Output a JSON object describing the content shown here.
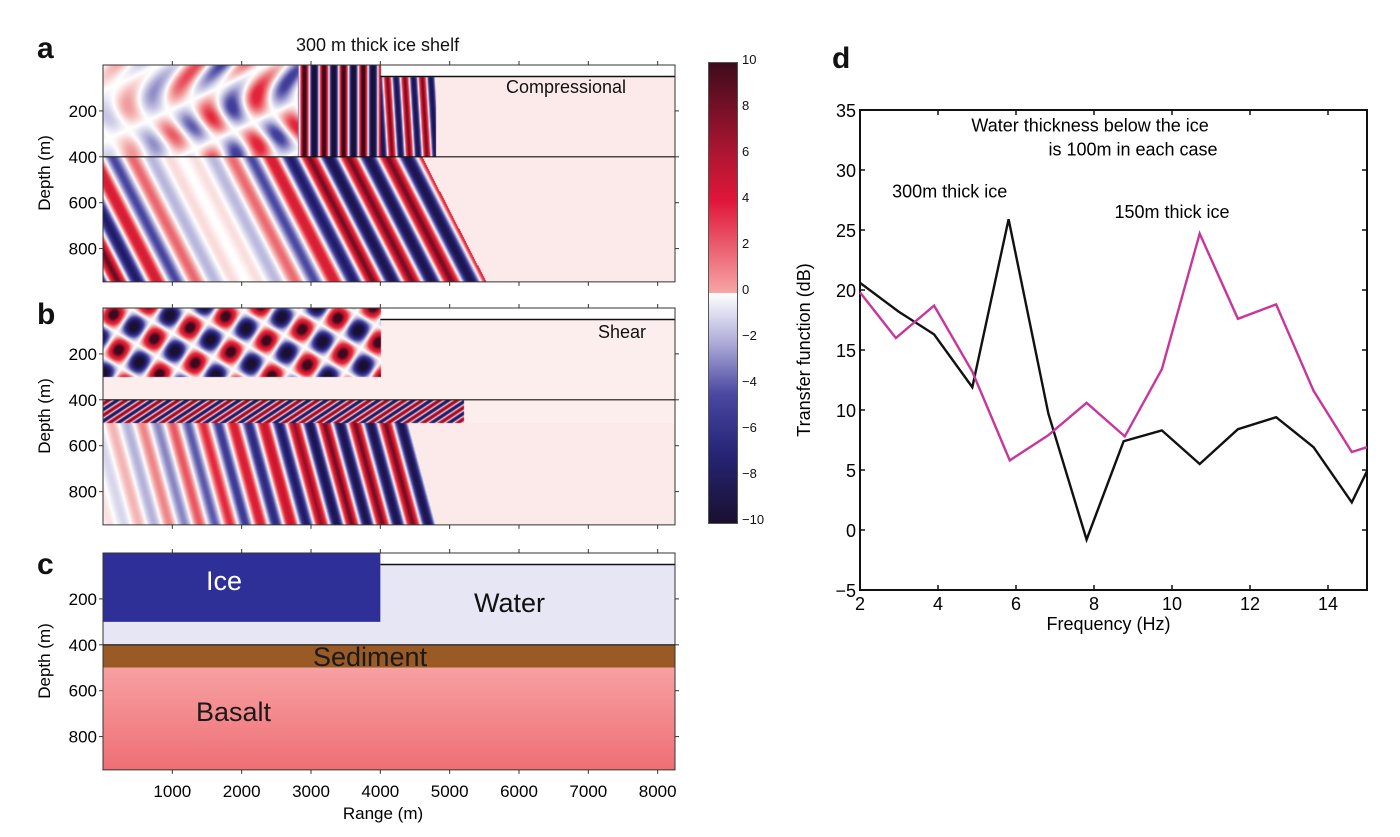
{
  "figure": {
    "panel_labels": [
      "a",
      "b",
      "c",
      "d"
    ],
    "left_title": "300 m thick ice shelf",
    "panel_a_label": "Compressional",
    "panel_b_label": "Shear",
    "depth_axis_label": "Depth (m)",
    "range_axis_label": "Range (m)",
    "depth_ticks": [
      "200",
      "400",
      "600",
      "800"
    ],
    "depth_tick_values": [
      200,
      400,
      600,
      800
    ],
    "range_ticks": [
      "1000",
      "2000",
      "3000",
      "4000",
      "5000",
      "6000",
      "7000",
      "8000"
    ],
    "range_tick_values": [
      1000,
      2000,
      3000,
      4000,
      5000,
      6000,
      7000,
      8000
    ],
    "range_limits_m": [
      0,
      8250
    ],
    "depth_limits_m": [
      0,
      945
    ],
    "colorbar": {
      "ticks": [
        "10",
        "8",
        "6",
        "4",
        "2",
        "0",
        "−2",
        "−4",
        "−6",
        "−8",
        "−10"
      ],
      "range": [
        -10,
        10
      ],
      "colors": {
        "max": "#3d0b1c",
        "high": "#e0163a",
        "mid": "#ffffff",
        "low": "#5a58a8",
        "min": "#1a1030"
      }
    },
    "model_layers": [
      {
        "name": "Ice",
        "top_m": 0,
        "bottom_m": 300,
        "range_to_m": 4000,
        "color": "#2e2f97"
      },
      {
        "name": "Water",
        "top_m": 50,
        "bottom_m": 400,
        "color": "#e6e6f4"
      },
      {
        "name": "Sediment",
        "top_m": 400,
        "bottom_m": 500,
        "color": "#9a5a25"
      },
      {
        "name": "Basalt",
        "top_m": 500,
        "bottom_m": 945,
        "color": "#f28a8c"
      }
    ],
    "model_labels": {
      "ice": "Ice",
      "water": "Water",
      "sediment": "Sediment",
      "basalt": "Basalt"
    }
  },
  "chart_data": {
    "type": "line",
    "title": "",
    "xlabel": "Frequency (Hz)",
    "ylabel": "Transfer function (dB)",
    "xlim": [
      2,
      15
    ],
    "ylim": [
      -5,
      35
    ],
    "xticks": [
      2,
      4,
      6,
      8,
      10,
      12,
      14
    ],
    "xtick_labels": [
      "2",
      "4",
      "6",
      "8",
      "10",
      "12",
      "14"
    ],
    "yticks": [
      -5,
      0,
      5,
      10,
      15,
      20,
      25,
      30,
      35
    ],
    "ytick_labels": [
      "−5",
      "0",
      "5",
      "10",
      "15",
      "20",
      "25",
      "30",
      "35"
    ],
    "grid": false,
    "annotations": [
      {
        "text": "Water thickness below the ice",
        "x": 7.9,
        "y": 33.2
      },
      {
        "text": "is 100m in each case",
        "x": 9.0,
        "y": 31.2
      },
      {
        "text": "300m thick ice",
        "x": 4.3,
        "y": 27.7
      },
      {
        "text": "150m thick ice",
        "x": 10.0,
        "y": 26.0
      }
    ],
    "series": [
      {
        "name": "300m thick ice",
        "color": "#111111",
        "x": [
          2.0,
          2.99,
          3.9,
          4.88,
          5.81,
          6.83,
          7.81,
          8.76,
          9.74,
          10.71,
          11.69,
          12.67,
          13.63,
          14.61,
          15.0
        ],
        "y": [
          20.6,
          18.2,
          16.3,
          11.9,
          25.9,
          9.7,
          -0.8,
          7.4,
          8.3,
          5.5,
          8.4,
          9.4,
          6.9,
          2.3,
          4.9
        ]
      },
      {
        "name": "150m thick ice",
        "color": "#c8359b",
        "x": [
          2.0,
          2.92,
          3.9,
          4.88,
          5.84,
          6.83,
          7.81,
          8.79,
          9.74,
          10.71,
          11.69,
          12.67,
          13.63,
          14.61,
          15.0
        ],
        "y": [
          19.8,
          16.0,
          18.7,
          13.2,
          5.8,
          7.9,
          10.6,
          7.8,
          13.4,
          24.7,
          17.6,
          18.8,
          11.6,
          6.5,
          6.9
        ]
      }
    ]
  }
}
